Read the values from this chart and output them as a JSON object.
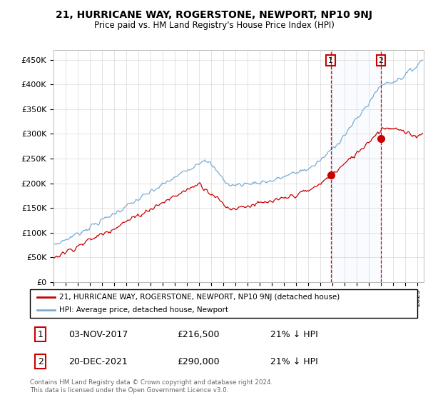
{
  "title1": "21, HURRICANE WAY, ROGERSTONE, NEWPORT, NP10 9NJ",
  "title2": "Price paid vs. HM Land Registry's House Price Index (HPI)",
  "ylabel_ticks": [
    "£0",
    "£50K",
    "£100K",
    "£150K",
    "£200K",
    "£250K",
    "£300K",
    "£350K",
    "£400K",
    "£450K"
  ],
  "ylim": [
    0,
    470000
  ],
  "xlim_start": 1995.0,
  "xlim_end": 2025.5,
  "hpi_color": "#7aadd4",
  "price_color": "#cc0000",
  "marker1_date": 2017.84,
  "marker2_date": 2021.97,
  "marker1_price": 216500,
  "marker2_price": 290000,
  "sale1_date_str": "03-NOV-2017",
  "sale1_price_str": "£216,500",
  "sale1_hpi_str": "21% ↓ HPI",
  "sale2_date_str": "20-DEC-2021",
  "sale2_price_str": "£290,000",
  "sale2_hpi_str": "21% ↓ HPI",
  "legend_line1": "21, HURRICANE WAY, ROGERSTONE, NEWPORT, NP10 9NJ (detached house)",
  "legend_line2": "HPI: Average price, detached house, Newport",
  "footer1": "Contains HM Land Registry data © Crown copyright and database right 2024.",
  "footer2": "This data is licensed under the Open Government Licence v3.0."
}
